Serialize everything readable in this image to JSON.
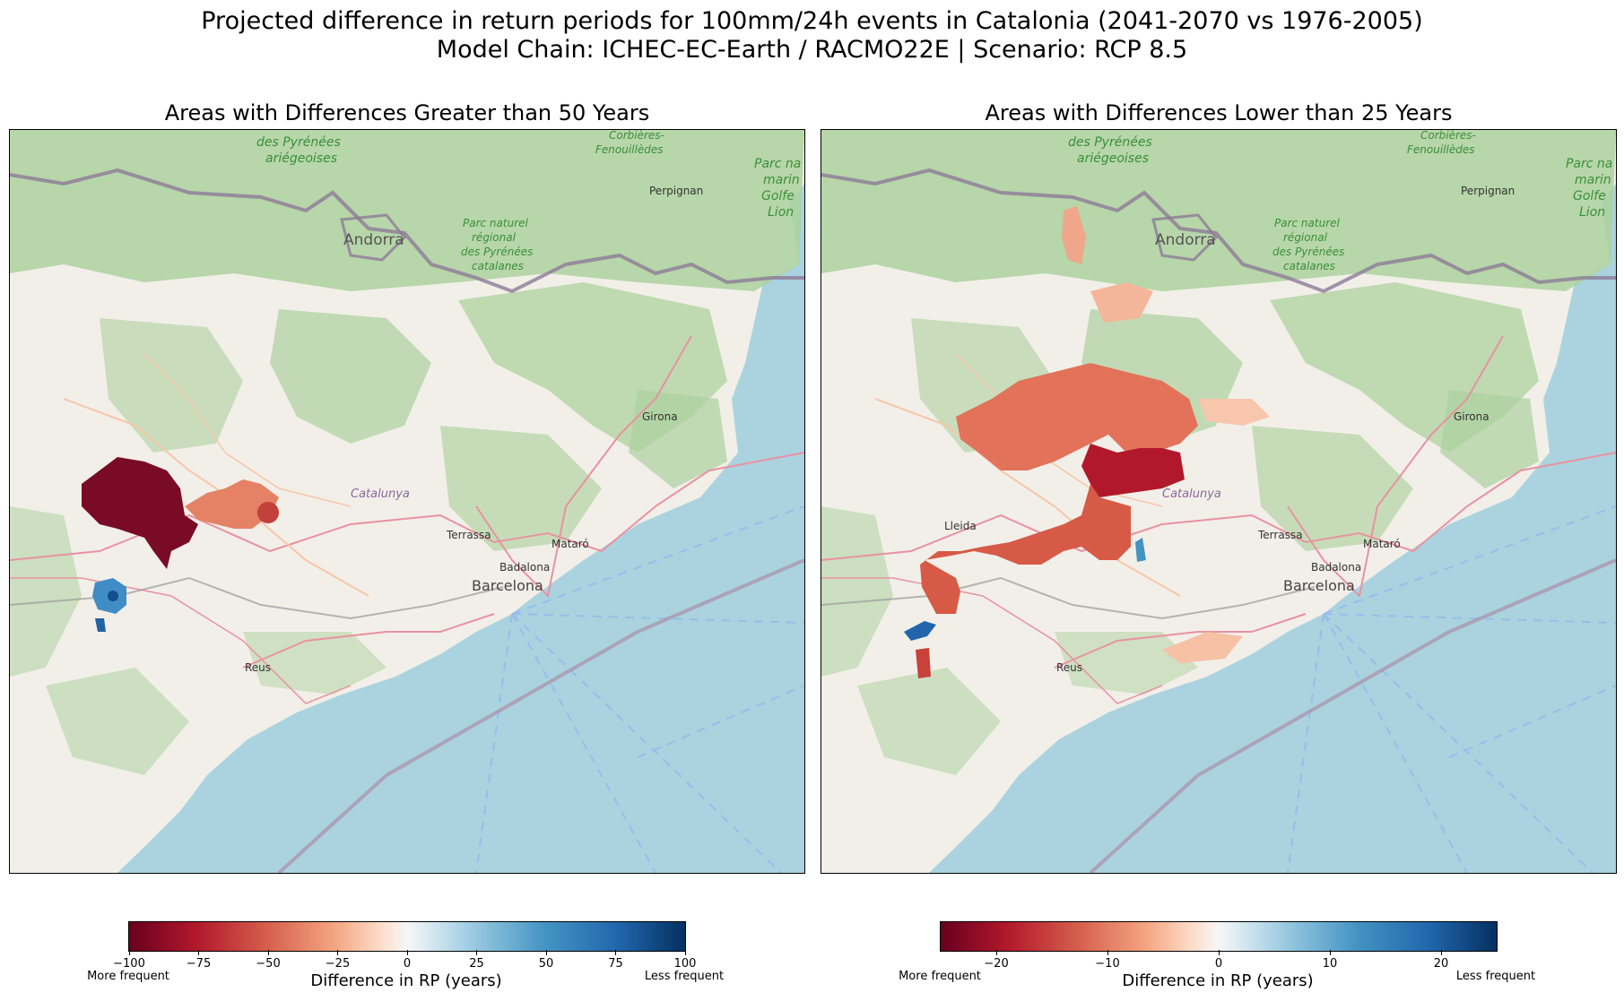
{
  "figure": {
    "title_line1": "Projected difference in return periods for 100mm/24h events in Catalonia (2041-2070 vs 1976-2005)",
    "title_line2": "Model Chain: ICHEC-EC-Earth / RACMO22E  | Scenario: RCP 8.5"
  },
  "panels": [
    {
      "title": "Areas with Differences Greater than 50 Years",
      "colorbar": {
        "label": "Difference in RP (years)",
        "left_end": "More frequent",
        "right_end": "Less frequent",
        "range": [
          -100,
          100
        ],
        "ticks": [
          "−100",
          "−75",
          "−50",
          "−25",
          "0",
          "25",
          "50",
          "75",
          "100"
        ],
        "tick_values": [
          -100,
          -75,
          -50,
          -25,
          0,
          25,
          50,
          75,
          100
        ],
        "colormap": "RdBu"
      }
    },
    {
      "title": "Areas with Differences Lower than 25 Years",
      "colorbar": {
        "label": "Difference in RP (years)",
        "left_end": "More frequent",
        "right_end": "Less frequent",
        "range": [
          -25,
          25
        ],
        "ticks": [
          "−20",
          "−10",
          "0",
          "10",
          "20"
        ],
        "tick_values": [
          -20,
          -10,
          0,
          10,
          20
        ],
        "colormap": "RdBu"
      }
    }
  ],
  "map_labels": {
    "pyrenees_ariegeoises_1": "des Pyrénées",
    "pyrenees_ariegeoises_2": "ariégeoises",
    "corbieres_1": "Corbières-",
    "corbieres_2": "Fenouillèdes",
    "parc_marin_1": "Parc na",
    "parc_marin_2": "marin",
    "parc_marin_3": "Golfe",
    "parc_marin_4": "Lion",
    "perpignan": "Perpignan",
    "andorra": "Andorra",
    "parc_naturel_1": "Parc naturel",
    "parc_naturel_2": "régional",
    "parc_naturel_3": "des Pyrénées",
    "parc_naturel_4": "catalanes",
    "girona": "Girona",
    "catalunya": "Catalunya",
    "lleida": "Lleida",
    "terrassa": "Terrassa",
    "mataro": "Mataró",
    "badalona": "Badalona",
    "barcelona": "Barcelona",
    "reus": "Reus"
  },
  "colors": {
    "sea": "#aad3df",
    "land": "#f2efe9",
    "forest": "#add19e",
    "border": "#9e8fa8",
    "road": "#e892a2",
    "dark_red": "#67001f",
    "red": "#d6604d",
    "light_red": "#f4a582",
    "blue": "#4393c3",
    "dark_blue": "#053061"
  }
}
